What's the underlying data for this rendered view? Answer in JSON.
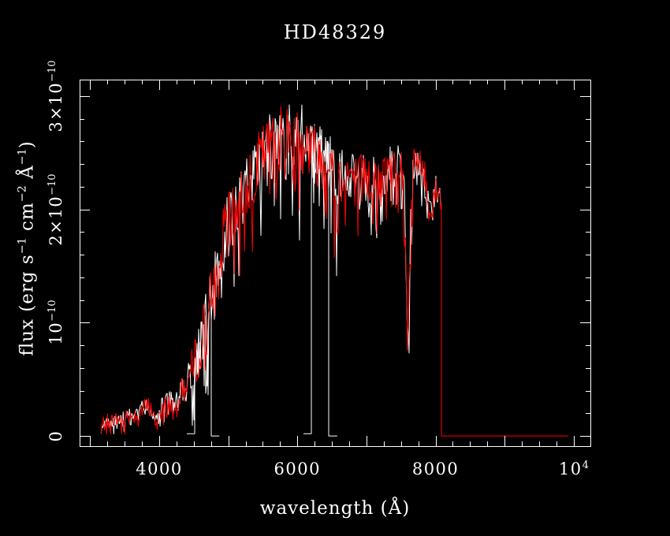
{
  "chart_data": {
    "type": "line",
    "title": "HD48329",
    "xlabel": "wavelength (Å)",
    "ylabel_plain": "flux (erg s−1 cm−2 Å−1)",
    "ylabel_parts": {
      "p1": "flux (erg s",
      "s1": "−1",
      "p2": " cm",
      "s2": "−2",
      "p3": " Å",
      "s3": "−1",
      "p4": ")"
    },
    "xlim": [
      2848,
      10241
    ],
    "ylim": [
      -0.09,
      3.146
    ],
    "y_unit": "1e-10 erg s−1 cm−2 Å−1",
    "grid": false,
    "legend": false,
    "x_ticks": {
      "major": [
        3000,
        4000,
        5000,
        6000,
        7000,
        8000,
        9000,
        10000
      ],
      "minor_step": 250,
      "labeled": [
        {
          "value": 4000,
          "base": "4000",
          "sup": ""
        },
        {
          "value": 6000,
          "base": "6000",
          "sup": ""
        },
        {
          "value": 8000,
          "base": "8000",
          "sup": ""
        },
        {
          "value": 10000,
          "base": "10",
          "sup": "4"
        }
      ]
    },
    "y_ticks": {
      "major": [
        0,
        1,
        2,
        3
      ],
      "minor_step": 0.2,
      "labeled": [
        {
          "value": 0,
          "base": "0",
          "sup": ""
        },
        {
          "value": 1,
          "base": "10",
          "sup": "−10"
        },
        {
          "value": 2,
          "base": "2×10",
          "sup": "−10"
        },
        {
          "value": 3,
          "base": "3×10",
          "sup": "−10"
        }
      ]
    },
    "colors": {
      "background": "#000000",
      "axis": "#ffffff",
      "spectrum": "#ff0000",
      "reference": "#ffffff"
    },
    "envelope_note": "anchor points (wavelength A, mean flux, noise amplitude) in units of 1e-10",
    "envelope": [
      [
        3160,
        0.1,
        0.09
      ],
      [
        3250,
        0.14,
        0.08
      ],
      [
        3400,
        0.15,
        0.08
      ],
      [
        3550,
        0.17,
        0.08
      ],
      [
        3700,
        0.2,
        0.09
      ],
      [
        3800,
        0.26,
        0.1
      ],
      [
        3880,
        0.27,
        0.1
      ],
      [
        3935,
        0.14,
        0.07
      ],
      [
        3990,
        0.18,
        0.1
      ],
      [
        4060,
        0.28,
        0.12
      ],
      [
        4180,
        0.3,
        0.12
      ],
      [
        4300,
        0.36,
        0.14
      ],
      [
        4400,
        0.48,
        0.19
      ],
      [
        4500,
        0.62,
        0.24
      ],
      [
        4600,
        0.85,
        0.3
      ],
      [
        4700,
        1.05,
        0.34
      ],
      [
        4800,
        1.35,
        0.37
      ],
      [
        4870,
        1.58,
        0.36
      ],
      [
        4950,
        1.78,
        0.34
      ],
      [
        5050,
        1.93,
        0.32
      ],
      [
        5150,
        2.08,
        0.3
      ],
      [
        5250,
        2.22,
        0.32
      ],
      [
        5350,
        2.33,
        0.33
      ],
      [
        5450,
        2.43,
        0.34
      ],
      [
        5550,
        2.52,
        0.35
      ],
      [
        5650,
        2.58,
        0.36
      ],
      [
        5750,
        2.6,
        0.38
      ],
      [
        5850,
        2.63,
        0.39
      ],
      [
        5950,
        2.68,
        0.35
      ],
      [
        6050,
        2.65,
        0.34
      ],
      [
        6150,
        2.6,
        0.36
      ],
      [
        6250,
        2.5,
        0.34
      ],
      [
        6350,
        2.47,
        0.3
      ],
      [
        6450,
        2.42,
        0.3
      ],
      [
        6530,
        2.3,
        0.34
      ],
      [
        6563,
        1.78,
        0.4
      ],
      [
        6610,
        2.28,
        0.28
      ],
      [
        6700,
        2.35,
        0.25
      ],
      [
        6800,
        2.31,
        0.25
      ],
      [
        6900,
        2.27,
        0.27
      ],
      [
        7000,
        2.31,
        0.28
      ],
      [
        7100,
        2.26,
        0.28
      ],
      [
        7200,
        2.21,
        0.25
      ],
      [
        7300,
        2.35,
        0.22
      ],
      [
        7400,
        2.45,
        0.2
      ],
      [
        7500,
        2.41,
        0.22
      ],
      [
        7550,
        2.0,
        0.45
      ],
      [
        7594,
        0.8,
        0.1
      ],
      [
        7640,
        1.85,
        0.45
      ],
      [
        7690,
        2.38,
        0.22
      ],
      [
        7780,
        2.45,
        0.2
      ],
      [
        7860,
        2.24,
        0.18
      ],
      [
        7900,
        2.0,
        0.12
      ],
      [
        7945,
        1.97,
        0.1
      ],
      [
        8000,
        2.2,
        0.16
      ],
      [
        8050,
        2.2,
        0.14
      ],
      [
        8085,
        2.0,
        0.06
      ]
    ],
    "series": [
      {
        "name": "reference spectrum (white, drawn behind)",
        "color": "#ffffff",
        "seed": 971,
        "chunks": [
          {
            "range": [
              3160,
              4753
            ],
            "zero_tail": [
              4753,
              4870
            ]
          },
          {
            "zero_lead": [
              4400,
              4514
            ],
            "range": [
              4514,
              6453
            ],
            "zero_tail": [
              6453,
              6578
            ]
          },
          {
            "zero_lead": [
              6088,
              6202
            ],
            "range": [
              6202,
              8085
            ]
          }
        ]
      },
      {
        "name": "HD48329 merged spectrum (red)",
        "color": "#ff0000",
        "seed": 7,
        "chunks": [
          {
            "range": [
              3160,
              8085
            ],
            "zero_tail": [
              8085,
              9920
            ]
          }
        ]
      }
    ]
  }
}
